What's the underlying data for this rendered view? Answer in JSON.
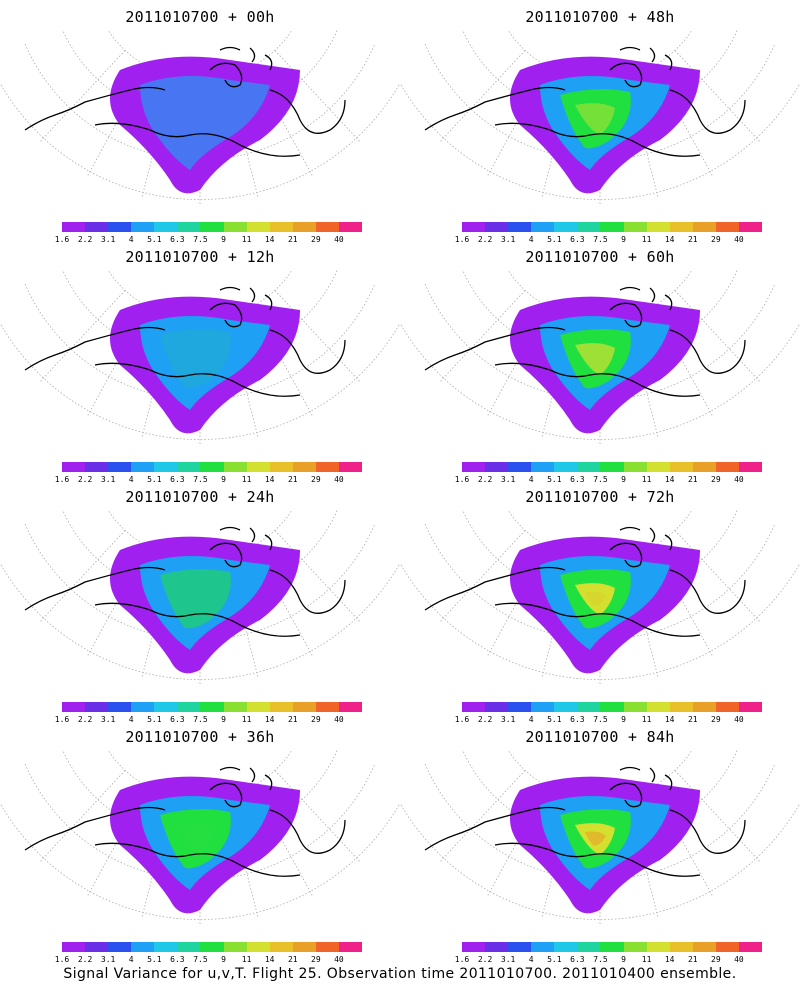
{
  "caption": "Signal Variance for u,v,T. Flight 25. Observation time 2011010700. 2011010400 ensemble.",
  "colorbar": {
    "labels": [
      "1.6",
      "2.2",
      "3.1",
      "4",
      "5.1",
      "6.3",
      "7.5",
      "9",
      "11",
      "14",
      "21",
      "29",
      "40"
    ],
    "colors": [
      "#a020f0",
      "#6a2ee8",
      "#2a50f0",
      "#1ea0f5",
      "#1ec8e6",
      "#20d4a0",
      "#20e040",
      "#8ae030",
      "#d4e030",
      "#e8c028",
      "#e8a028",
      "#f06428",
      "#f0208a"
    ]
  },
  "panels": [
    {
      "title": "2011010700 + 00h",
      "intensity": 0.15
    },
    {
      "title": "2011010700 + 48h",
      "intensity": 0.55
    },
    {
      "title": "2011010700 + 12h",
      "intensity": 0.25
    },
    {
      "title": "2011010700 + 60h",
      "intensity": 0.6
    },
    {
      "title": "2011010700 + 24h",
      "intensity": 0.35
    },
    {
      "title": "2011010700 + 72h",
      "intensity": 0.7
    },
    {
      "title": "2011010700 + 36h",
      "intensity": 0.45
    },
    {
      "title": "2011010700 + 84h",
      "intensity": 0.8
    }
  ]
}
